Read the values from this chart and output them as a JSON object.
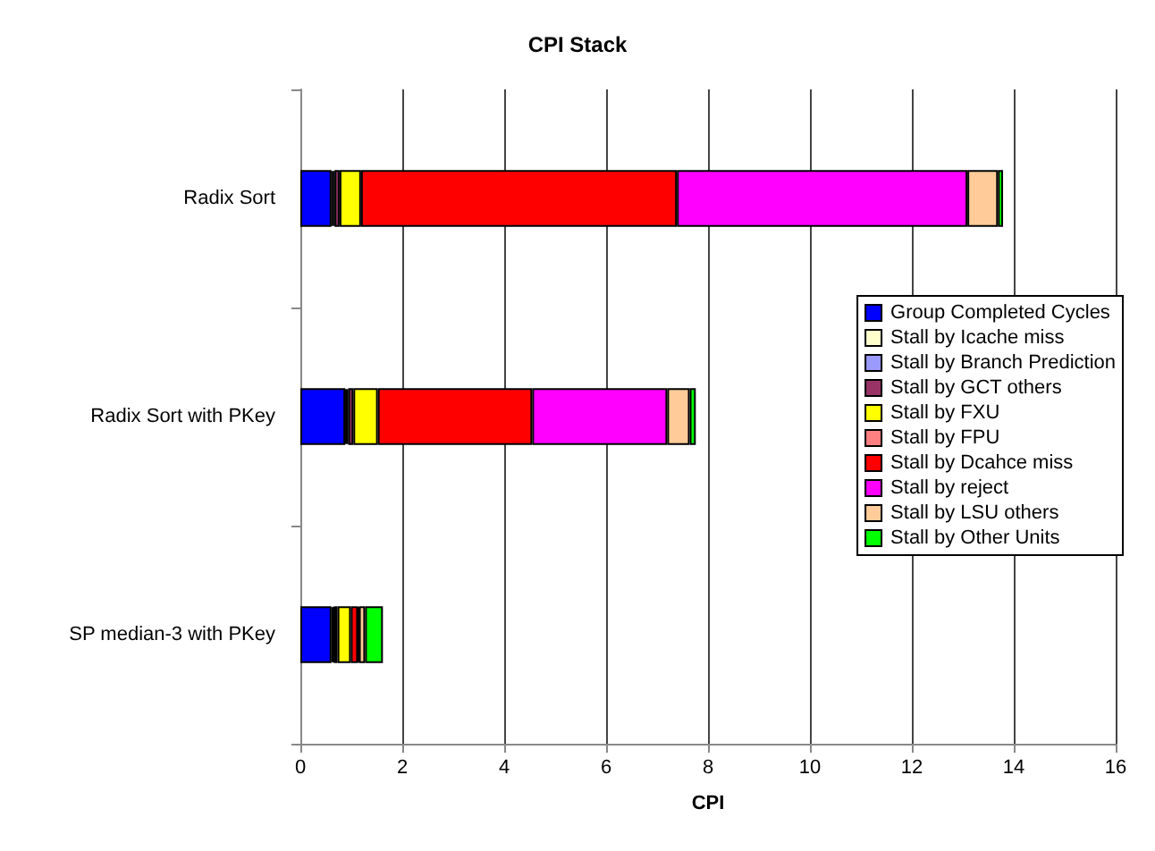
{
  "chart_data": {
    "type": "bar",
    "title": "CPI Stack",
    "xlabel": "CPI",
    "orientation": "horizontal",
    "stacked": true,
    "categories": [
      "Radix Sort",
      "Radix Sort with PKey",
      "SP median-3 with PKey"
    ],
    "series": [
      {
        "name": "Group Completed Cycles",
        "color": "#0000ff",
        "values": [
          0.61,
          0.88,
          0.61
        ]
      },
      {
        "name": "Stall by Icache miss",
        "color": "#ffffcc",
        "values": [
          0.03,
          0.03,
          0.03
        ]
      },
      {
        "name": "Stall by Branch Prediction",
        "color": "#9999ff",
        "values": [
          0.03,
          0.03,
          0.02
        ]
      },
      {
        "name": "Stall by GCT others",
        "color": "#993366",
        "values": [
          0.1,
          0.1,
          0.07
        ]
      },
      {
        "name": "Stall by FXU",
        "color": "#ffff00",
        "values": [
          0.42,
          0.48,
          0.26
        ]
      },
      {
        "name": "Stall by FPU",
        "color": "#ff8080",
        "values": [
          null,
          null,
          null
        ]
      },
      {
        "name": "Stall by Dcahce miss",
        "color": "#ff0000",
        "values": [
          6.2,
          3.03,
          0.14
        ]
      },
      {
        "name": "Stall by reject",
        "color": "#ff00ff",
        "values": [
          5.7,
          2.65,
          0.02
        ]
      },
      {
        "name": "Stall by LSU others",
        "color": "#ffcc99",
        "values": [
          0.6,
          0.44,
          0.12
        ]
      },
      {
        "name": "Stall by Other Units",
        "color": "#00ff00",
        "values": [
          0.1,
          0.12,
          0.35
        ]
      }
    ],
    "xlim": [
      0,
      16
    ],
    "xticks": [
      0,
      2,
      4,
      6,
      8,
      10,
      12,
      14,
      16
    ],
    "grid": "x",
    "legend": "right"
  }
}
